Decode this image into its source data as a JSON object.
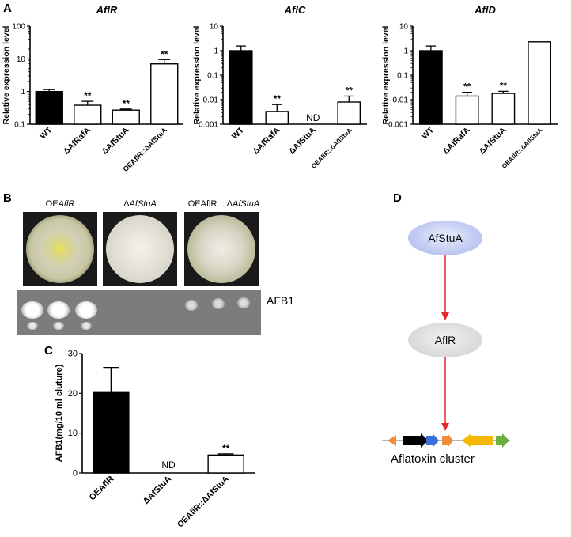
{
  "panels": {
    "a": "A",
    "b": "B",
    "c": "C",
    "d": "D"
  },
  "chart_data": [
    {
      "type": "bar",
      "title": "AflR",
      "ylabel": "Relative expression level",
      "yscale": "log",
      "ylim": [
        0.1,
        100
      ],
      "yticks": [
        "0.1",
        "1",
        "10",
        "100"
      ],
      "categories": [
        "WT",
        "ΔAfRafA",
        "ΔAfStuA",
        "OEAflR::ΔAfStuA"
      ],
      "values": [
        1.0,
        0.38,
        0.27,
        7.0
      ],
      "errors": [
        0.15,
        0.12,
        0.02,
        2.5
      ],
      "fill": [
        "#000000",
        "#ffffff",
        "#ffffff",
        "#ffffff"
      ],
      "annotations": [
        "",
        "**",
        "**",
        "**"
      ]
    },
    {
      "type": "bar",
      "title": "AflC",
      "ylabel": "Relative expression level",
      "yscale": "log",
      "ylim": [
        0.001,
        10
      ],
      "yticks": [
        "0.001",
        "0.01",
        "0.1",
        "1",
        "10"
      ],
      "categories": [
        "WT",
        "ΔAfRafA",
        "ΔAfStuA",
        "OEAflR::ΔAflStuA"
      ],
      "values": [
        1.0,
        0.0033,
        null,
        0.008
      ],
      "errors": [
        0.55,
        0.003,
        null,
        0.006
      ],
      "fill": [
        "#000000",
        "#ffffff",
        "#ffffff",
        "#ffffff"
      ],
      "annotations": [
        "",
        "**",
        "ND",
        "**"
      ]
    },
    {
      "type": "bar",
      "title": "AflD",
      "ylabel": "Relative expression level",
      "yscale": "log",
      "ylim": [
        0.001,
        10
      ],
      "yticks": [
        "0.001",
        "0.01",
        "0.1",
        "1",
        "10"
      ],
      "categories": [
        "WT",
        "ΔAfRafA",
        "ΔAfStuA",
        "OEAflR::ΔAflStuA"
      ],
      "values": [
        1.0,
        0.014,
        0.018,
        2.3
      ],
      "errors": [
        0.55,
        0.006,
        0.004,
        0
      ],
      "fill": [
        "#000000",
        "#ffffff",
        "#ffffff",
        "#ffffff"
      ],
      "annotations": [
        "",
        "**",
        "**",
        ""
      ]
    },
    {
      "type": "bar",
      "title": "",
      "ylabel": "AFB1(mg/10 ml cluture)",
      "yscale": "linear",
      "ylim": [
        0,
        30
      ],
      "yticks": [
        "0",
        "10",
        "20",
        "30"
      ],
      "categories": [
        "OEAflR",
        "ΔAfStuA",
        "OEAflR::ΔAfStuA"
      ],
      "values": [
        20.2,
        null,
        4.5
      ],
      "errors": [
        6.3,
        null,
        0.3
      ],
      "fill": [
        "#000000",
        "#ffffff",
        "#ffffff"
      ],
      "annotations": [
        "",
        "ND",
        "**"
      ]
    }
  ],
  "plates": {
    "labels": [
      {
        "prefix": "OE",
        "italic": "AflR",
        "mid": "",
        "italic2": ""
      },
      {
        "prefix": "Δ",
        "italic": "AfStuA",
        "mid": "",
        "italic2": ""
      },
      {
        "prefix": "OEAflR :: Δ",
        "italic": "AfStuA",
        "mid": "",
        "italic2": ""
      }
    ],
    "tlc_label": "AFB1"
  },
  "pathway": {
    "node1": "AfStuA",
    "node2": "AflR",
    "cluster_label": "Aflatoxin cluster",
    "arrow_color": "#e8262a",
    "gene_colors": [
      "#f08c3c",
      "#000000",
      "#3b6fd8",
      "#f08c3c",
      "#f5b800",
      "#6aaf3c"
    ]
  }
}
